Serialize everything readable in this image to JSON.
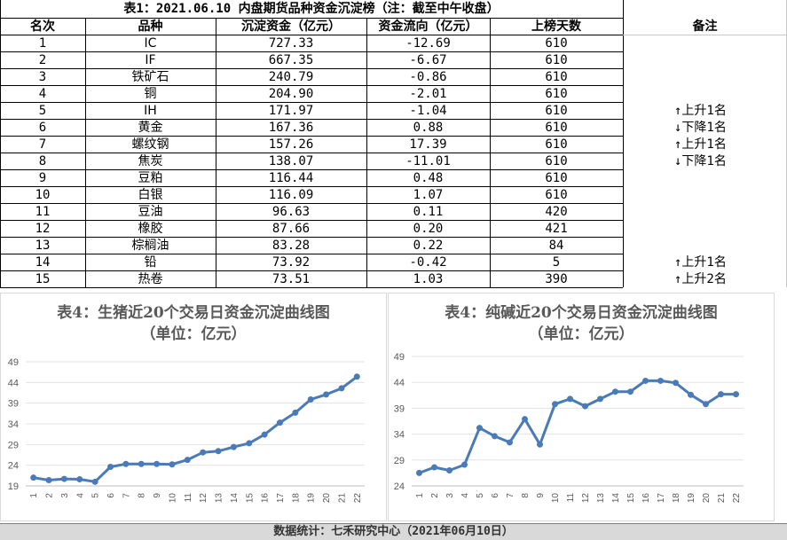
{
  "table": {
    "title": "表1：2021.06.10 内盘期货品种资金沉淀榜（注：截至中午收盘）",
    "headers": [
      "名次",
      "品种",
      "沉淀资金（亿元）",
      "资金流向（亿元）",
      "上榜天数",
      "备注"
    ],
    "rows": [
      {
        "rank": "1",
        "name": "IC",
        "fund": "727.33",
        "flow": "-12.69",
        "days": "610",
        "note": ""
      },
      {
        "rank": "2",
        "name": "IF",
        "fund": "667.35",
        "flow": "-6.67",
        "days": "610",
        "note": ""
      },
      {
        "rank": "3",
        "name": "铁矿石",
        "fund": "240.79",
        "flow": "-0.86",
        "days": "610",
        "note": ""
      },
      {
        "rank": "4",
        "name": "铜",
        "fund": "204.90",
        "flow": "-2.01",
        "days": "610",
        "note": ""
      },
      {
        "rank": "5",
        "name": "IH",
        "fund": "171.97",
        "flow": "-1.04",
        "days": "610",
        "note": "↑上升1名"
      },
      {
        "rank": "6",
        "name": "黄金",
        "fund": "167.36",
        "flow": "0.88",
        "days": "610",
        "note": "↓下降1名"
      },
      {
        "rank": "7",
        "name": "螺纹钢",
        "fund": "157.26",
        "flow": "17.39",
        "days": "610",
        "note": "↑上升1名"
      },
      {
        "rank": "8",
        "name": "焦炭",
        "fund": "138.07",
        "flow": "-11.01",
        "days": "610",
        "note": "↓下降1名"
      },
      {
        "rank": "9",
        "name": "豆粕",
        "fund": "116.44",
        "flow": "0.48",
        "days": "610",
        "note": ""
      },
      {
        "rank": "10",
        "name": "白银",
        "fund": "116.09",
        "flow": "1.07",
        "days": "610",
        "note": ""
      },
      {
        "rank": "11",
        "name": "豆油",
        "fund": "96.63",
        "flow": "0.11",
        "days": "420",
        "note": ""
      },
      {
        "rank": "12",
        "name": "橡胶",
        "fund": "87.66",
        "flow": "0.20",
        "days": "421",
        "note": ""
      },
      {
        "rank": "13",
        "name": "棕榈油",
        "fund": "83.28",
        "flow": "0.22",
        "days": "84",
        "note": ""
      },
      {
        "rank": "14",
        "name": "铅",
        "fund": "73.92",
        "flow": "-0.42",
        "days": "5",
        "note": "↑上升1名"
      },
      {
        "rank": "15",
        "name": "热卷",
        "fund": "73.51",
        "flow": "1.03",
        "days": "390",
        "note": "↑上升2名"
      }
    ]
  },
  "chart_data": [
    {
      "type": "line",
      "title": "表4：生猪近20个交易日资金沉淀曲线图",
      "subtitle": "（单位：亿元）",
      "x": [
        "1",
        "2",
        "3",
        "4",
        "5",
        "6",
        "7",
        "8",
        "9",
        "10",
        "11",
        "12",
        "13",
        "14",
        "15",
        "16",
        "17",
        "18",
        "19",
        "20",
        "21",
        "22"
      ],
      "values": [
        21.0,
        20.4,
        20.7,
        20.6,
        20.0,
        23.6,
        24.3,
        24.3,
        24.3,
        24.2,
        25.3,
        27.1,
        27.4,
        28.4,
        29.3,
        31.4,
        34.3,
        36.7,
        39.9,
        41.1,
        42.6,
        45.4
      ],
      "yticks": [
        19,
        24,
        29,
        34,
        39,
        44,
        49
      ],
      "ylim": [
        19,
        49
      ],
      "color": "#4a7ab8",
      "grid": true
    },
    {
      "type": "line",
      "title": "表4：纯碱近20个交易日资金沉淀曲线图",
      "subtitle": "（单位：亿元）",
      "x": [
        "1",
        "2",
        "3",
        "4",
        "5",
        "6",
        "7",
        "8",
        "9",
        "10",
        "11",
        "12",
        "13",
        "14",
        "15",
        "16",
        "17",
        "18",
        "19",
        "20",
        "21",
        "22"
      ],
      "values": [
        26.5,
        27.6,
        27.0,
        28.1,
        35.2,
        33.6,
        32.4,
        36.9,
        32.0,
        39.8,
        40.8,
        39.4,
        40.8,
        42.2,
        42.2,
        44.3,
        44.3,
        43.9,
        41.6,
        39.8,
        41.7,
        41.7
      ],
      "yticks": [
        24,
        29,
        34,
        39,
        44,
        49
      ],
      "ylim": [
        24,
        49
      ],
      "color": "#4a7ab8",
      "grid": true
    }
  ],
  "footer": "数据统计：七禾研究中心（2021年06月10日）"
}
